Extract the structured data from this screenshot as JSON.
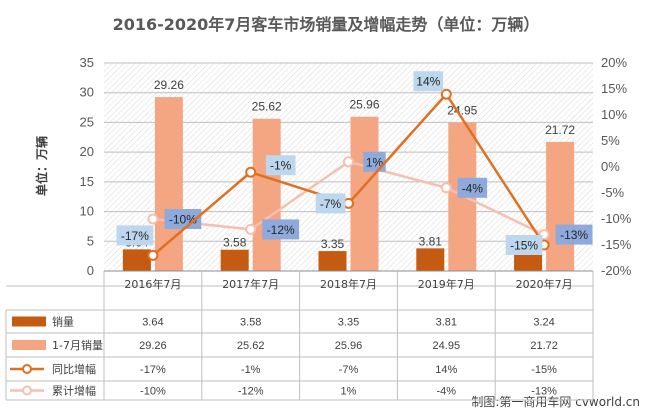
{
  "chart_data": {
    "type": "bar",
    "title": "2016-2020年7月客车市场销量及增幅走势（单位：万辆）",
    "ylabel": "单位：万辆",
    "ylim": [
      0,
      35
    ],
    "y2lim": [
      -20,
      20
    ],
    "y_ticks": [
      "0",
      "5",
      "10",
      "15",
      "20",
      "25",
      "30",
      "35"
    ],
    "y2_ticks": [
      "-20%",
      "-15%",
      "-10%",
      "-5%",
      "0%",
      "5%",
      "10%",
      "15%",
      "20%"
    ],
    "categories": [
      "2016年7月",
      "2017年7月",
      "2018年7月",
      "2019年7月",
      "2020年7月"
    ],
    "series": [
      {
        "name": "销量",
        "kind": "bar",
        "axis": "left",
        "color": "#C55A11",
        "values": [
          3.64,
          3.58,
          3.35,
          3.81,
          3.24
        ],
        "labels": [
          "3.64",
          "3.58",
          "3.35",
          "3.81",
          "3.24"
        ]
      },
      {
        "name": "1-7月销量",
        "kind": "bar",
        "axis": "left",
        "color": "#F4A582",
        "values": [
          29.26,
          25.62,
          25.96,
          24.95,
          21.72
        ],
        "labels": [
          "29.26",
          "25.62",
          "25.96",
          "24.95",
          "21.72"
        ]
      },
      {
        "name": "同比增幅",
        "kind": "line",
        "axis": "right",
        "color": "#E07020",
        "values": [
          -17,
          -1,
          -7,
          14,
          -15
        ],
        "labels": [
          "-17%",
          "-1%",
          "-7%",
          "14%",
          "-15%"
        ]
      },
      {
        "name": "累计增幅",
        "kind": "line",
        "axis": "right",
        "color": "#F5C0B0",
        "values": [
          -10,
          -12,
          1,
          -4,
          -13
        ],
        "labels": [
          "-10%",
          "-12%",
          "1%",
          "-4%",
          "-13%"
        ]
      }
    ],
    "grid": true,
    "legend": "data-table-bottom"
  },
  "colors": {
    "line_label_box": "#BDD7EE",
    "cum_label_box": "#8EA9DB",
    "plot_hatch": "#D9D9D9"
  },
  "watermark": "制图:第一商用车网 cvworld.cn"
}
